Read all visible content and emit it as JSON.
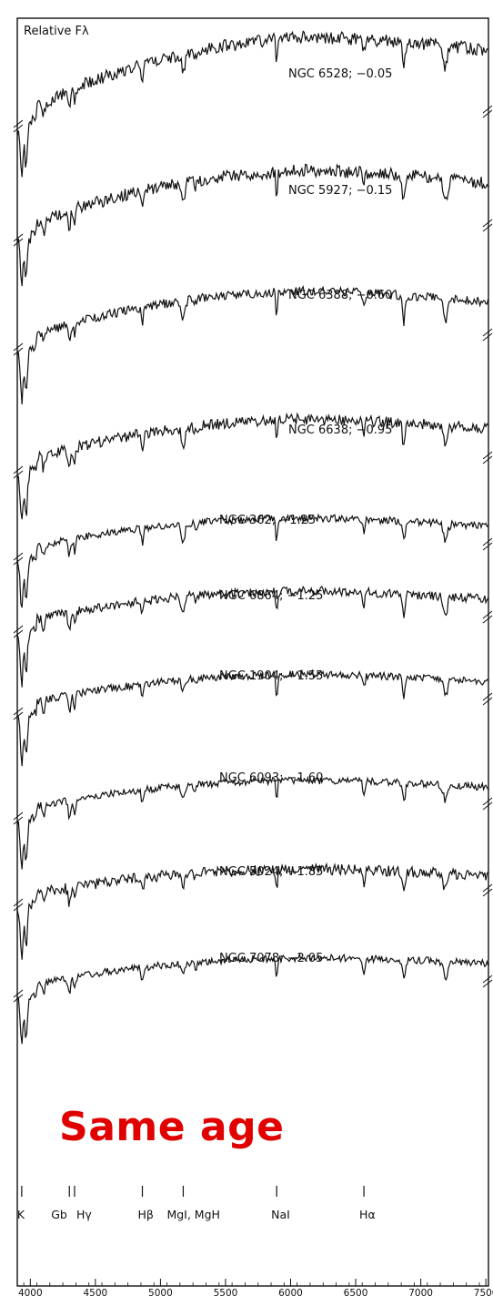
{
  "chart_data": {
    "type": "line",
    "ylabel": "Relative Fλ",
    "xlim": [
      3900,
      7520
    ],
    "x_ticks": [
      4000,
      4500,
      5000,
      5500,
      6000,
      6500,
      7000,
      7500
    ],
    "grid": false,
    "annotation": "Same age",
    "spectral_lines": [
      {
        "label": "K",
        "wavelength": 3934
      },
      {
        "label": "Gb",
        "wavelength": 4300
      },
      {
        "label": "Hγ",
        "wavelength": 4340
      },
      {
        "label": "Hβ",
        "wavelength": 4861
      },
      {
        "label": "MgI, MgH",
        "wavelength": 5175
      },
      {
        "label": "NaI",
        "wavelength": 5893
      },
      {
        "label": "Hα",
        "wavelength": 6563
      }
    ],
    "series": [
      {
        "name": "NGC 6528; −0.05"
      },
      {
        "name": "NGC 5927; −0.15"
      },
      {
        "name": "NGC 6388; −0.60"
      },
      {
        "name": "NGC 6638; −0.95"
      },
      {
        "name": "NGC  362; −1.25"
      },
      {
        "name": "NGC 6864; −1.25"
      },
      {
        "name": "NGC 1904; −1.55"
      },
      {
        "name": "NGC 6093; −1.60"
      },
      {
        "name": "NGC 5024; −1.85"
      },
      {
        "name": "NGC 7078; −2.05"
      }
    ]
  }
}
